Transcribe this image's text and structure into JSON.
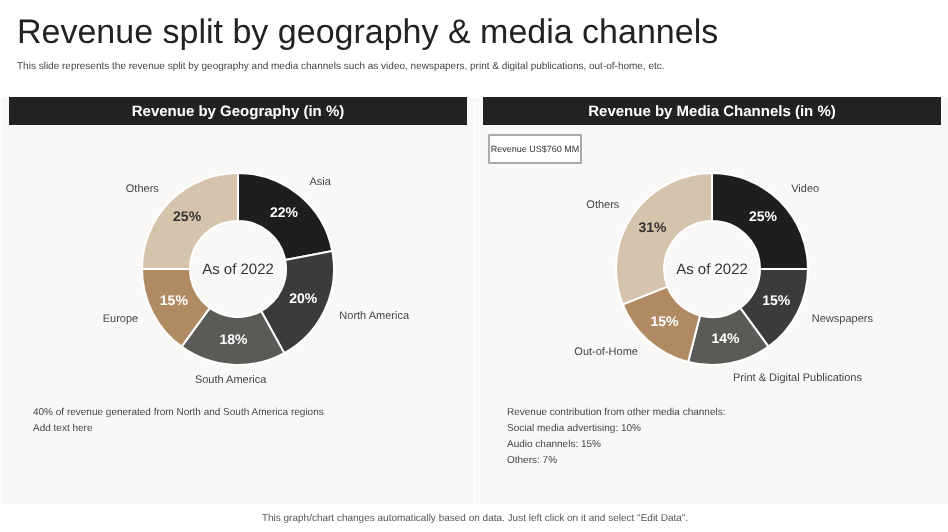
{
  "chart_data": [
    {
      "type": "other",
      "title": "Revenue split by geography & media channels",
      "subtitle": "This slide represents the revenue split by geography and media channels such as video, newspapers, print & digital publications, out-of-home, etc."
    },
    {
      "type": "donut",
      "title": "Revenue by Geography (in %)",
      "categories": [
        "Asia",
        "North America",
        "South America",
        "Europe",
        "Others"
      ],
      "values": [
        22,
        20,
        18,
        15,
        25
      ],
      "value_labels": [
        "22%",
        "20%",
        "18%",
        "15%",
        "25%"
      ],
      "colors": [
        "#1e1e1e",
        "#3b3b3b",
        "#5c5a56",
        "#b08a62",
        "#d6c3ab"
      ],
      "annotations": [
        "As of 2022",
        "40% of revenue generated from North and South America regions",
        "Add text here"
      ]
    },
    {
      "type": "donut",
      "title": "Revenue by Media Channels (in %)",
      "subtitle": "Revenue US$760 MM",
      "categories": [
        "Video",
        "Newspapers",
        "Print & Digital Publications",
        "Out-of-Home",
        "Others"
      ],
      "values": [
        25,
        15,
        14,
        15,
        31
      ],
      "value_labels": [
        "25%",
        "15%",
        "14%",
        "15%",
        "31%"
      ],
      "colors": [
        "#1e1e1e",
        "#3b3b3b",
        "#5c5a56",
        "#b08a62",
        "#d6c3ab"
      ],
      "annotations": [
        "As of 2022",
        "Revenue contribution from other media channels:",
        "Social media advertising: 10%",
        "Audio channels: 15%",
        "Others: 7%"
      ]
    },
    {
      "type": "other",
      "annotations": [
        "This graph/chart changes automatically based on data. Just left click on it and select \"Edit Data\"."
      ]
    }
  ]
}
